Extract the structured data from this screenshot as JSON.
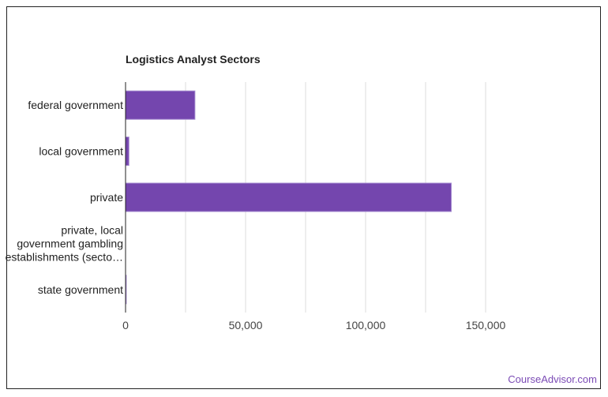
{
  "chart_data": {
    "type": "bar",
    "orientation": "horizontal",
    "title": "Logistics Analyst Sectors",
    "categories": [
      "federal government",
      "local government",
      "private",
      "private, local government gambling establishments (secto…",
      "state government"
    ],
    "category_lines": [
      [
        "federal government"
      ],
      [
        "local government"
      ],
      [
        "private"
      ],
      [
        "private, local",
        "government gambling",
        "establishments (secto…"
      ],
      [
        "state government"
      ]
    ],
    "values": [
      28900,
      1400,
      135700,
      0,
      300
    ],
    "xlim": [
      0,
      150000
    ],
    "xticks": [
      0,
      50000,
      100000,
      150000
    ],
    "xtick_labels": [
      "0",
      "50,000",
      "100,000",
      "150,000"
    ],
    "gridlines": [
      25000,
      50000,
      75000,
      100000,
      125000,
      150000
    ],
    "grid": true,
    "bar_color": "#7446ae",
    "xlabel": "",
    "ylabel": ""
  },
  "credit": "CourseAdvisor.com"
}
